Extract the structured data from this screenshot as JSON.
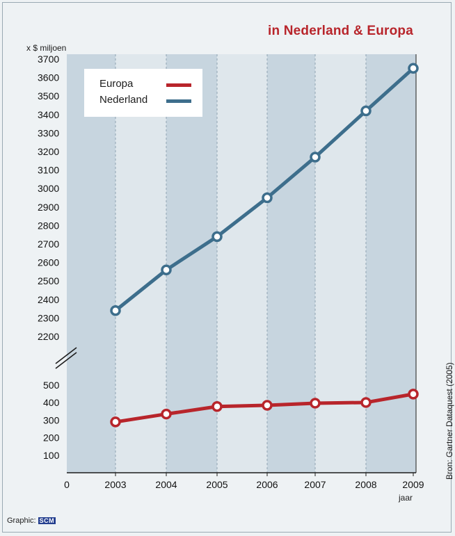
{
  "title": "in Nederland & Europa",
  "unit_label": "x $ miljoen",
  "x_unit": "jaar",
  "source": "Bron: Gartner Dataquest (2005)",
  "credit": {
    "label": "Graphic:",
    "logo_text": "SCM",
    "logo_color": "#243f8f"
  },
  "colors": {
    "background": "#eef2f4",
    "band_dark": "#c7d5df",
    "band_light": "#dfe7ec",
    "europa": "#b8252b",
    "nederland": "#3d6e8c",
    "title": "#b8252b"
  },
  "legend": [
    {
      "label": "Europa",
      "color": "#b8252b"
    },
    {
      "label": "Nederland",
      "color": "#3d6e8c"
    }
  ],
  "chart_data": {
    "type": "line",
    "title": "in Nederland & Europa",
    "xlabel": "jaar",
    "ylabel": "x $ miljoen",
    "x_origin_label": "0",
    "categories": [
      "2003",
      "2004",
      "2005",
      "2006",
      "2007",
      "2008",
      "2009"
    ],
    "series": [
      {
        "name": "Europa",
        "color": "#b8252b",
        "values": [
          290,
          335,
          378,
          385,
          397,
          401,
          449
        ]
      },
      {
        "name": "Nederland",
        "color": "#3d6e8c",
        "values": [
          2340,
          2560,
          2740,
          2950,
          3170,
          3420,
          3650
        ]
      }
    ],
    "axis_break": true,
    "y_ticks_lower": [
      100,
      200,
      300,
      400,
      500
    ],
    "y_ticks_upper": [
      2200,
      2300,
      2400,
      2500,
      2600,
      2700,
      2800,
      2900,
      3000,
      3100,
      3200,
      3300,
      3400,
      3500,
      3600,
      3700
    ],
    "ylim_lower": [
      0,
      500
    ],
    "ylim_upper": [
      2200,
      3700
    ],
    "grid": "vertical dashed lines at each year",
    "legend_position": "top-left"
  }
}
